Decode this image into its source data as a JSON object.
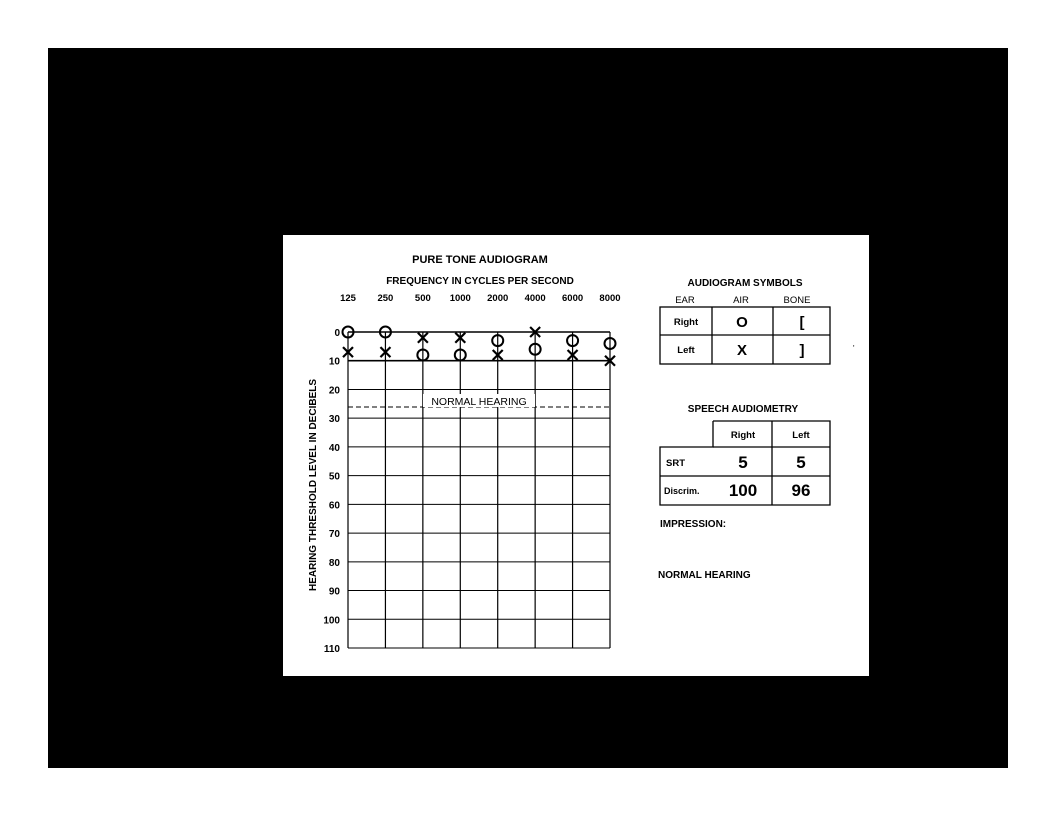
{
  "chart_data": {
    "type": "scatter",
    "title": "PURE TONE AUDIOGRAM",
    "xlabel": "FREQUENCY IN CYCLES PER SECOND",
    "ylabel": "HEARING THRESHOLD LEVEL IN DECIBELS",
    "x_ticks": [
      "125",
      "250",
      "500",
      "1000",
      "2000",
      "4000",
      "6000",
      "8000"
    ],
    "y_ticks": [
      "0",
      "10",
      "20",
      "30",
      "40",
      "50",
      "60",
      "70",
      "80",
      "90",
      "100",
      "110"
    ],
    "ylim": [
      0,
      110
    ],
    "y_inverted": true,
    "annotation": "NORMAL HEARING",
    "normal_limit_db": 25,
    "grid": true,
    "series": [
      {
        "symbol": "O",
        "x": [
          125,
          250,
          500,
          1000,
          2000,
          4000,
          6000,
          8000
        ],
        "values": [
          0,
          0,
          8,
          8,
          3,
          6,
          3,
          4
        ]
      },
      {
        "symbol": "X",
        "x": [
          125,
          250,
          500,
          1000,
          2000,
          4000,
          6000,
          8000
        ],
        "values": [
          7,
          7,
          2,
          2,
          8,
          0,
          8,
          10
        ]
      }
    ]
  },
  "symbols_table": {
    "title": "AUDIOGRAM SYMBOLS",
    "headers": [
      "EAR",
      "AIR",
      "BONE"
    ],
    "rows": [
      {
        "ear": "Right",
        "air": "O",
        "bone": "["
      },
      {
        "ear": "Left",
        "air": "X",
        "bone": "]"
      }
    ]
  },
  "speech_table": {
    "title": "SPEECH AUDIOMETRY",
    "headers": [
      "Right",
      "Left"
    ],
    "rows": [
      {
        "label": "SRT",
        "right": "5",
        "left": "5"
      },
      {
        "label": "Discrim.",
        "right": "100",
        "left": "96"
      }
    ]
  },
  "impression": {
    "label": "IMPRESSION:",
    "text": "NORMAL HEARING"
  },
  "colors": {
    "background": "#000000",
    "card": "#ffffff",
    "ink": "#000000"
  }
}
